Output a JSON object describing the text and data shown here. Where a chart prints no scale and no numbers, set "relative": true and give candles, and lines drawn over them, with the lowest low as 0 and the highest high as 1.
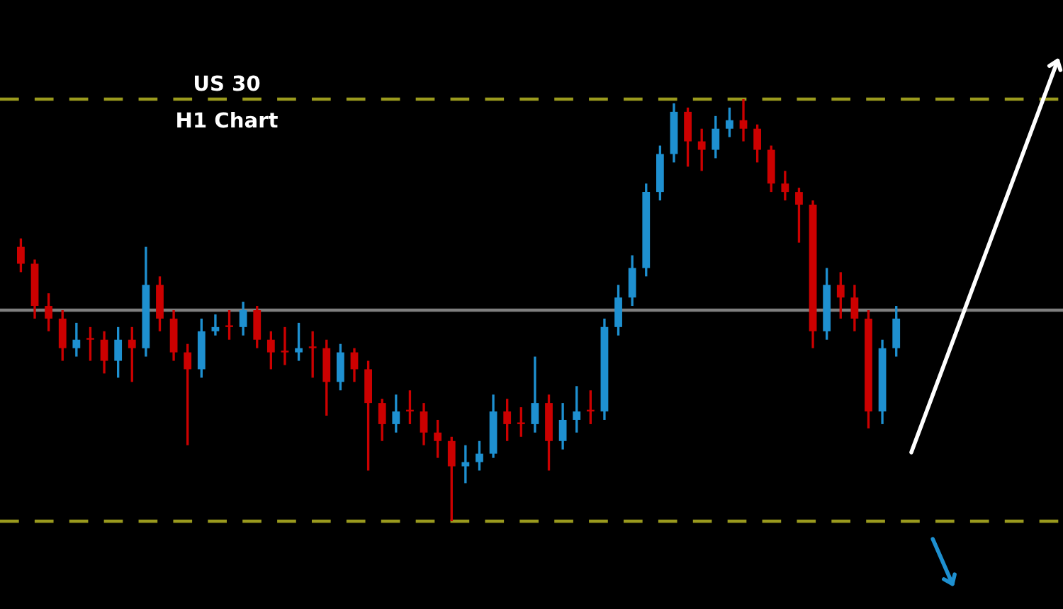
{
  "chart_data": {
    "type": "candlestick",
    "title": "US 30",
    "subtitle": "H1 Chart",
    "relative": true,
    "categories": [
      null,
      null,
      null,
      null,
      null,
      null,
      null,
      null,
      null,
      null,
      null,
      null,
      null,
      null,
      null,
      null,
      null,
      null,
      null,
      null,
      null,
      null,
      null,
      null,
      null,
      null,
      null,
      null,
      null,
      null,
      null,
      null,
      null,
      null,
      null,
      null,
      null,
      null,
      null,
      null,
      null,
      null,
      null,
      null,
      null,
      null,
      null,
      null,
      null,
      null,
      null,
      null,
      null,
      null,
      null,
      null,
      null,
      null,
      null,
      null,
      null,
      null,
      null,
      null
    ],
    "ohlc": [
      [
        0.65,
        0.67,
        0.59,
        0.61
      ],
      [
        0.61,
        0.62,
        0.48,
        0.51
      ],
      [
        0.51,
        0.54,
        0.45,
        0.48
      ],
      [
        0.48,
        0.5,
        0.38,
        0.41
      ],
      [
        0.41,
        0.47,
        0.39,
        0.43
      ],
      [
        0.43,
        0.46,
        0.38,
        0.43
      ],
      [
        0.43,
        0.45,
        0.35,
        0.38
      ],
      [
        0.38,
        0.46,
        0.34,
        0.43
      ],
      [
        0.43,
        0.46,
        0.33,
        0.41
      ],
      [
        0.41,
        0.65,
        0.39,
        0.56
      ],
      [
        0.56,
        0.58,
        0.45,
        0.48
      ],
      [
        0.48,
        0.5,
        0.38,
        0.4
      ],
      [
        0.4,
        0.42,
        0.18,
        0.36
      ],
      [
        0.36,
        0.48,
        0.34,
        0.45
      ],
      [
        0.45,
        0.49,
        0.44,
        0.46
      ],
      [
        0.46,
        0.5,
        0.43,
        0.46
      ],
      [
        0.46,
        0.52,
        0.44,
        0.5
      ],
      [
        0.5,
        0.51,
        0.41,
        0.43
      ],
      [
        0.43,
        0.45,
        0.36,
        0.4
      ],
      [
        0.4,
        0.46,
        0.37,
        0.4
      ],
      [
        0.4,
        0.47,
        0.38,
        0.41
      ],
      [
        0.41,
        0.45,
        0.34,
        0.41
      ],
      [
        0.41,
        0.43,
        0.25,
        0.33
      ],
      [
        0.33,
        0.42,
        0.31,
        0.4
      ],
      [
        0.4,
        0.41,
        0.33,
        0.36
      ],
      [
        0.36,
        0.38,
        0.12,
        0.28
      ],
      [
        0.28,
        0.29,
        0.19,
        0.23
      ],
      [
        0.23,
        0.3,
        0.21,
        0.26
      ],
      [
        0.26,
        0.31,
        0.23,
        0.26
      ],
      [
        0.26,
        0.28,
        0.18,
        0.21
      ],
      [
        0.21,
        0.24,
        0.15,
        0.19
      ],
      [
        0.19,
        0.2,
        0.0,
        0.13
      ],
      [
        0.13,
        0.18,
        0.09,
        0.14
      ],
      [
        0.14,
        0.19,
        0.12,
        0.16
      ],
      [
        0.16,
        0.3,
        0.15,
        0.26
      ],
      [
        0.26,
        0.29,
        0.19,
        0.23
      ],
      [
        0.23,
        0.27,
        0.2,
        0.23
      ],
      [
        0.23,
        0.39,
        0.21,
        0.28
      ],
      [
        0.28,
        0.3,
        0.12,
        0.19
      ],
      [
        0.19,
        0.28,
        0.17,
        0.24
      ],
      [
        0.24,
        0.32,
        0.21,
        0.26
      ],
      [
        0.26,
        0.31,
        0.23,
        0.26
      ],
      [
        0.26,
        0.48,
        0.24,
        0.46
      ],
      [
        0.46,
        0.56,
        0.44,
        0.53
      ],
      [
        0.53,
        0.63,
        0.51,
        0.6
      ],
      [
        0.6,
        0.8,
        0.58,
        0.78
      ],
      [
        0.78,
        0.89,
        0.76,
        0.87
      ],
      [
        0.87,
        0.99,
        0.85,
        0.97
      ],
      [
        0.97,
        0.98,
        0.84,
        0.9
      ],
      [
        0.9,
        0.93,
        0.83,
        0.88
      ],
      [
        0.88,
        0.96,
        0.86,
        0.93
      ],
      [
        0.93,
        0.98,
        0.91,
        0.95
      ],
      [
        0.95,
        1.0,
        0.9,
        0.93
      ],
      [
        0.93,
        0.94,
        0.85,
        0.88
      ],
      [
        0.88,
        0.89,
        0.78,
        0.8
      ],
      [
        0.8,
        0.83,
        0.76,
        0.78
      ],
      [
        0.78,
        0.79,
        0.66,
        0.75
      ],
      [
        0.75,
        0.76,
        0.41,
        0.45
      ],
      [
        0.45,
        0.6,
        0.43,
        0.56
      ],
      [
        0.56,
        0.59,
        0.48,
        0.53
      ],
      [
        0.53,
        0.56,
        0.45,
        0.48
      ],
      [
        0.48,
        0.5,
        0.22,
        0.26
      ],
      [
        0.26,
        0.43,
        0.23,
        0.41
      ],
      [
        0.41,
        0.51,
        0.39,
        0.48
      ]
    ],
    "colors": [
      "#cc0000",
      "#cc0000",
      "#cc0000",
      "#cc0000",
      "#1e90d0",
      "#cc0000",
      "#cc0000",
      "#1e90d0",
      "#cc0000",
      "#1e90d0",
      "#cc0000",
      "#cc0000",
      "#cc0000",
      "#1e90d0",
      "#1e90d0",
      "#cc0000",
      "#1e90d0",
      "#cc0000",
      "#cc0000",
      "#cc0000",
      "#1e90d0",
      "#cc0000",
      "#cc0000",
      "#1e90d0",
      "#cc0000",
      "#cc0000",
      "#cc0000",
      "#1e90d0",
      "#cc0000",
      "#cc0000",
      "#cc0000",
      "#cc0000",
      "#1e90d0",
      "#1e90d0",
      "#1e90d0",
      "#cc0000",
      "#cc0000",
      "#1e90d0",
      "#cc0000",
      "#1e90d0",
      "#1e90d0",
      "#cc0000",
      "#1e90d0",
      "#1e90d0",
      "#1e90d0",
      "#1e90d0",
      "#1e90d0",
      "#1e90d0",
      "#cc0000",
      "#cc0000",
      "#1e90d0",
      "#1e90d0",
      "#cc0000",
      "#cc0000",
      "#cc0000",
      "#cc0000",
      "#cc0000",
      "#cc0000",
      "#1e90d0",
      "#cc0000",
      "#cc0000",
      "#cc0000",
      "#1e90d0",
      "#1e90d0"
    ],
    "ref_lines": [
      {
        "axis": "y",
        "value": 1.0,
        "color": "#9a9a1e",
        "line_style": "dashed"
      },
      {
        "axis": "y",
        "value": 0.5,
        "color": "#7f7f7f",
        "line_style": "solid"
      },
      {
        "axis": "y",
        "value": 0.0,
        "color": "#9a9a1e",
        "line_style": "dashed"
      }
    ]
  }
}
